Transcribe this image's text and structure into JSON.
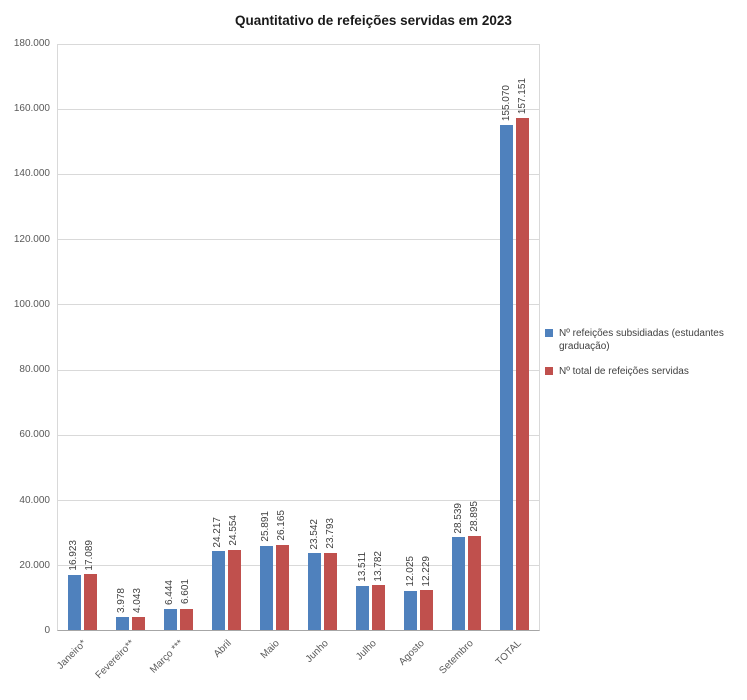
{
  "title": "Quantitativo de refeições servidas em 2023",
  "colors": {
    "series1": "#4F81BD",
    "series2": "#C0504D",
    "gridline": "#D9D9D9",
    "axis": "#A6A6A6"
  },
  "chart_data": {
    "type": "bar",
    "title": "Quantitativo de refeições servidas em 2023",
    "categories": [
      "Janeiro*",
      "Fevereiro**",
      "Março ***",
      "Abril",
      "Maio",
      "Junho",
      "Julho",
      "Agosto",
      "Setembro",
      "TOTAL"
    ],
    "series": [
      {
        "name": "Nº refeições subsidiadas (estudantes graduação)",
        "color": "#4F81BD",
        "values": [
          16923,
          3978,
          6444,
          24217,
          25891,
          23542,
          13511,
          12025,
          28539,
          155070
        ],
        "labels": [
          "16.923",
          "3.978",
          "6.444",
          "24.217",
          "25.891",
          "23.542",
          "13.511",
          "12.025",
          "28.539",
          "155.070"
        ]
      },
      {
        "name": "Nº total de refeições servidas",
        "color": "#C0504D",
        "values": [
          17089,
          4043,
          6601,
          24554,
          26165,
          23793,
          13782,
          12229,
          28895,
          157151
        ],
        "labels": [
          "17.089",
          "4.043",
          "6.601",
          "24.554",
          "26.165",
          "23.793",
          "13.782",
          "12.229",
          "28.895",
          "157.151"
        ]
      }
    ],
    "ylim": [
      0,
      180000
    ],
    "y_tick_step": 20000,
    "y_ticks": [
      "0",
      "20.000",
      "40.000",
      "60.000",
      "80.000",
      "100.000",
      "120.000",
      "140.000",
      "160.000",
      "180.000"
    ],
    "xlabel": "",
    "ylabel": "",
    "grid": "horizontal",
    "legend_position": "right"
  }
}
